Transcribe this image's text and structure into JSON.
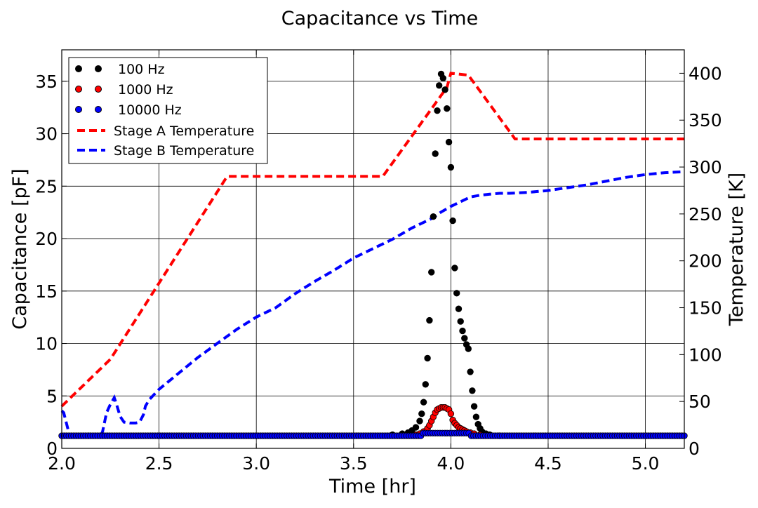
{
  "chart_data": {
    "type": "scatter",
    "title": "Capacitance vs Time",
    "xlabel": "Time [hr]",
    "ylabel": "Capacitance [pF]",
    "y2label": "Temperature [K]",
    "xlim": [
      2.0,
      5.2
    ],
    "ylim": [
      0,
      38
    ],
    "y2lim": [
      0,
      425
    ],
    "xticks": [
      "2.0",
      "2.5",
      "3.0",
      "3.5",
      "4.0",
      "4.5",
      "5.0"
    ],
    "yticks": [
      "0",
      "5",
      "10",
      "15",
      "20",
      "25",
      "30",
      "35"
    ],
    "y2ticks": [
      "0",
      "50",
      "100",
      "150",
      "200",
      "250",
      "300",
      "350",
      "400"
    ],
    "grid": true,
    "legend_position": "top-left",
    "colors": {
      "s100": "#000000",
      "s1000": "#ff0000",
      "s10000": "#0000ff",
      "stageA": "#ff0000",
      "stageB": "#0000ff"
    },
    "series": [
      {
        "name": "100 Hz",
        "kind": "scatter",
        "axis": "left",
        "x": [
          3.7,
          3.75,
          3.78,
          3.8,
          3.82,
          3.84,
          3.85,
          3.86,
          3.87,
          3.88,
          3.89,
          3.9,
          3.91,
          3.92,
          3.93,
          3.94,
          3.95,
          3.96,
          3.97,
          3.98,
          3.99,
          4.0,
          4.01,
          4.02,
          4.03,
          4.04,
          4.05,
          4.06,
          4.07,
          4.08,
          4.09,
          4.1,
          4.11,
          4.12,
          4.13,
          4.14,
          4.15,
          4.16,
          4.18,
          4.2,
          4.25
        ],
        "y": [
          1.3,
          1.4,
          1.5,
          1.7,
          2.0,
          2.6,
          3.3,
          4.4,
          6.1,
          8.6,
          12.2,
          16.8,
          22.1,
          28.1,
          32.2,
          34.6,
          35.7,
          35.3,
          34.2,
          32.4,
          29.2,
          26.8,
          21.7,
          17.2,
          14.8,
          13.3,
          12.1,
          11.2,
          10.5,
          9.9,
          9.5,
          7.3,
          5.5,
          4.0,
          3.0,
          2.3,
          1.9,
          1.6,
          1.4,
          1.3,
          1.2
        ]
      },
      {
        "name": "1000 Hz",
        "kind": "scatter",
        "axis": "left",
        "x": [
          3.82,
          3.84,
          3.86,
          3.88,
          3.89,
          3.9,
          3.91,
          3.92,
          3.93,
          3.94,
          3.95,
          3.96,
          3.97,
          3.98,
          3.99,
          4.0,
          4.01,
          4.02,
          4.03,
          4.04,
          4.05,
          4.06,
          4.07,
          4.08,
          4.1,
          4.12,
          4.15
        ],
        "y": [
          1.3,
          1.4,
          1.6,
          1.9,
          2.2,
          2.6,
          3.0,
          3.4,
          3.7,
          3.8,
          3.9,
          3.9,
          3.9,
          3.8,
          3.7,
          3.3,
          2.7,
          2.4,
          2.2,
          2.0,
          1.9,
          1.8,
          1.7,
          1.6,
          1.5,
          1.4,
          1.3
        ]
      },
      {
        "name": "10000 Hz",
        "kind": "scatter",
        "axis": "left",
        "x": [
          2.0,
          5.2
        ],
        "y": [
          1.2,
          1.2
        ]
      },
      {
        "name": "Stage A Temperature",
        "kind": "line",
        "axis": "right",
        "x": [
          2.0,
          2.25,
          2.85,
          3.65,
          3.98,
          4.0,
          4.09,
          4.33,
          5.2
        ],
        "y": [
          45,
          95,
          290,
          290,
          385,
          400,
          398,
          330,
          330
        ]
      },
      {
        "name": "Stage B Temperature",
        "kind": "line",
        "axis": "right",
        "x": [
          2.0,
          2.01,
          2.03,
          2.04,
          2.05,
          2.1,
          2.15,
          2.2,
          2.21,
          2.23,
          2.25,
          2.27,
          2.28,
          2.3,
          2.32,
          2.35,
          2.38,
          2.4,
          2.42,
          2.43,
          2.45,
          2.5,
          2.6,
          2.7,
          2.8,
          2.9,
          3.0,
          3.1,
          3.2,
          3.3,
          3.4,
          3.5,
          3.6,
          3.7,
          3.8,
          3.9,
          3.95,
          4.0,
          4.05,
          4.1,
          4.15,
          4.2,
          4.25,
          4.3,
          4.4,
          4.5,
          4.6,
          4.7,
          4.8,
          4.9,
          5.0,
          5.1,
          5.2
        ],
        "y": [
          40,
          38,
          22,
          13,
          13,
          13,
          13,
          13,
          18,
          38,
          47,
          54,
          48,
          34,
          28,
          27,
          27,
          28,
          36,
          45,
          52,
          63,
          80,
          97,
          112,
          127,
          140,
          150,
          165,
          178,
          190,
          203,
          213,
          223,
          235,
          245,
          252,
          258,
          263,
          268,
          270,
          271,
          272,
          272,
          273,
          275,
          278,
          281,
          285,
          289,
          292,
          294,
          295
        ]
      }
    ]
  }
}
